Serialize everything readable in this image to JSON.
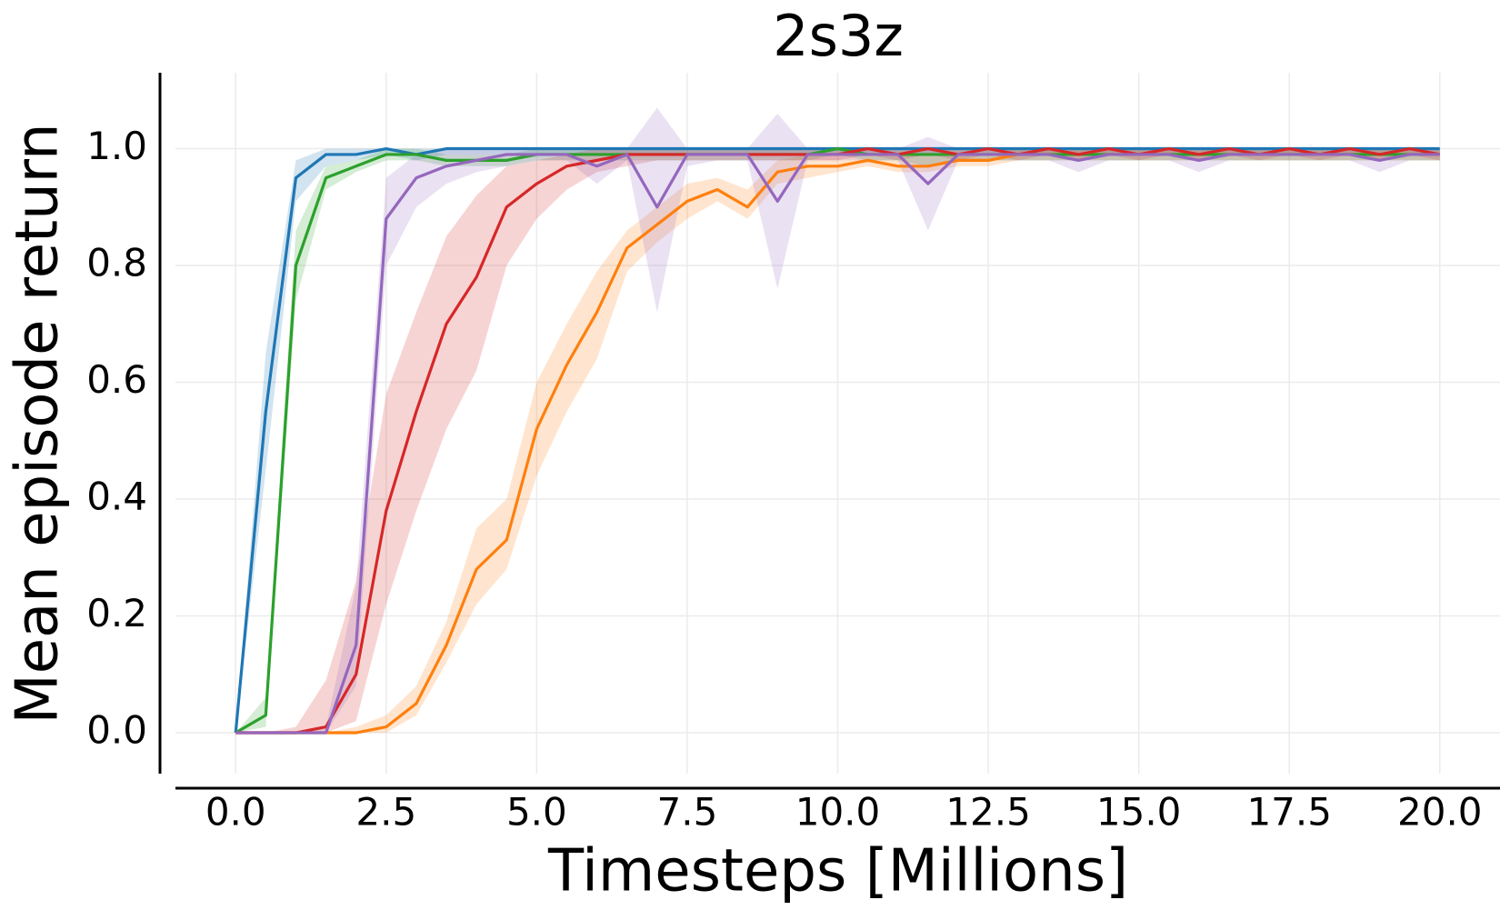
{
  "chart_data": {
    "type": "line",
    "title": "2s3z",
    "xlabel": "Timesteps [Millions]",
    "ylabel": "Mean episode return",
    "x": [
      0,
      0.5,
      1,
      1.5,
      2,
      2.5,
      3,
      3.5,
      4,
      4.5,
      5,
      5.5,
      6,
      6.5,
      7,
      7.5,
      8,
      8.5,
      9,
      9.5,
      10,
      10.5,
      11,
      11.5,
      12,
      12.5,
      13,
      13.5,
      14,
      14.5,
      15,
      15.5,
      16,
      16.5,
      17,
      17.5,
      18,
      18.5,
      19,
      19.5,
      20
    ],
    "xlim": [
      -1,
      21
    ],
    "xticks": [
      {
        "value": 0,
        "label": "0.0"
      },
      2.5,
      {
        "value": 5,
        "label": "5.0"
      },
      7.5,
      {
        "value": 10,
        "label": "10.0"
      },
      12.5,
      {
        "value": 15,
        "label": "15.0"
      },
      17.5,
      {
        "value": 20,
        "label": "20.0"
      }
    ],
    "ylim": [
      -0.07,
      1.13
    ],
    "yticks": [
      {
        "value": 0,
        "label": "0.0"
      },
      0.2,
      0.4,
      0.6,
      0.8,
      {
        "value": 1,
        "label": "1.0"
      }
    ],
    "grid": true,
    "series": [
      {
        "color": "#1f77b4",
        "values": [
          0,
          0.55,
          0.95,
          0.99,
          0.99,
          1,
          0.99,
          1,
          1,
          1,
          1,
          1,
          1,
          1,
          1,
          1,
          1,
          1,
          1,
          1,
          1,
          1,
          1,
          1,
          1,
          1,
          1,
          1,
          1,
          1,
          1,
          1,
          1,
          1,
          1,
          1,
          1,
          1,
          1,
          1,
          1
        ],
        "lower": [
          0,
          0.45,
          0.91,
          0.97,
          0.98,
          0.99,
          0.98,
          0.99,
          0.99,
          0.99,
          0.99,
          0.99,
          0.99,
          0.99,
          0.99,
          0.99,
          0.99,
          0.99,
          0.99,
          0.99,
          0.99,
          0.99,
          0.99,
          0.99,
          0.99,
          0.99,
          0.99,
          0.99,
          0.99,
          0.99,
          0.99,
          0.99,
          0.99,
          0.99,
          0.99,
          0.99,
          0.99,
          0.99,
          0.99,
          0.99,
          0.99
        ],
        "upper": [
          0,
          0.65,
          0.98,
          1,
          1,
          1,
          1,
          1,
          1,
          1,
          1,
          1,
          1,
          1,
          1,
          1,
          1,
          1,
          1,
          1,
          1,
          1,
          1,
          1,
          1,
          1,
          1,
          1,
          1,
          1,
          1,
          1,
          1,
          1,
          1,
          1,
          1,
          1,
          1,
          1,
          1
        ]
      },
      {
        "color": "#ff7f0e",
        "values": [
          0,
          0,
          0,
          0,
          0,
          0.01,
          0.05,
          0.15,
          0.28,
          0.33,
          0.52,
          0.63,
          0.72,
          0.83,
          0.87,
          0.91,
          0.93,
          0.9,
          0.96,
          0.97,
          0.97,
          0.98,
          0.97,
          0.97,
          0.98,
          0.98,
          0.99,
          0.99,
          0.99,
          0.99,
          0.99,
          0.99,
          0.99,
          0.99,
          0.99,
          0.99,
          0.99,
          0.99,
          0.99,
          0.99,
          0.99
        ],
        "lower": [
          0,
          0,
          0,
          0,
          0,
          0,
          0.03,
          0.12,
          0.22,
          0.28,
          0.44,
          0.55,
          0.64,
          0.79,
          0.84,
          0.88,
          0.91,
          0.88,
          0.94,
          0.95,
          0.96,
          0.97,
          0.96,
          0.96,
          0.97,
          0.97,
          0.98,
          0.98,
          0.98,
          0.98,
          0.98,
          0.98,
          0.98,
          0.98,
          0.98,
          0.98,
          0.98,
          0.98,
          0.98,
          0.98,
          0.98
        ],
        "upper": [
          0,
          0,
          0,
          0,
          0.01,
          0.03,
          0.08,
          0.19,
          0.35,
          0.4,
          0.6,
          0.7,
          0.79,
          0.86,
          0.9,
          0.94,
          0.95,
          0.93,
          0.98,
          0.99,
          0.99,
          0.99,
          0.99,
          0.99,
          0.99,
          0.99,
          1,
          1,
          1,
          1,
          1,
          1,
          1,
          1,
          1,
          1,
          1,
          1,
          1,
          1,
          1
        ]
      },
      {
        "color": "#2ca02c",
        "values": [
          0,
          0.03,
          0.8,
          0.95,
          0.97,
          0.99,
          0.99,
          0.98,
          0.98,
          0.98,
          0.99,
          0.99,
          0.99,
          0.99,
          0.99,
          0.99,
          0.99,
          0.99,
          0.99,
          0.99,
          1,
          0.99,
          0.99,
          0.99,
          0.99,
          0.99,
          0.99,
          0.99,
          0.99,
          0.99,
          0.99,
          0.99,
          0.99,
          0.99,
          0.99,
          0.99,
          0.99,
          0.99,
          0.99,
          0.99,
          0.99
        ],
        "lower": [
          0,
          0.01,
          0.74,
          0.93,
          0.96,
          0.98,
          0.98,
          0.97,
          0.97,
          0.97,
          0.98,
          0.98,
          0.98,
          0.98,
          0.98,
          0.98,
          0.98,
          0.98,
          0.98,
          0.98,
          0.99,
          0.98,
          0.98,
          0.97,
          0.98,
          0.98,
          0.98,
          0.98,
          0.98,
          0.98,
          0.98,
          0.98,
          0.98,
          0.98,
          0.98,
          0.98,
          0.98,
          0.98,
          0.98,
          0.98,
          0.98
        ],
        "upper": [
          0,
          0.06,
          0.86,
          0.97,
          0.98,
          1,
          1,
          0.99,
          0.99,
          0.99,
          1,
          1,
          1,
          1,
          1,
          1,
          1,
          1,
          1,
          1,
          1,
          1,
          1,
          1,
          1,
          1,
          1,
          1,
          1,
          1,
          1,
          1,
          1,
          1,
          1,
          1,
          1,
          1,
          1,
          1,
          1
        ]
      },
      {
        "color": "#d62728",
        "values": [
          0,
          0,
          0,
          0.01,
          0.1,
          0.38,
          0.55,
          0.7,
          0.78,
          0.9,
          0.94,
          0.97,
          0.98,
          0.99,
          0.99,
          0.99,
          0.99,
          0.99,
          0.99,
          0.99,
          0.99,
          1,
          0.99,
          1,
          0.99,
          1,
          0.99,
          1,
          0.99,
          1,
          0.99,
          1,
          0.99,
          1,
          0.99,
          1,
          0.99,
          1,
          0.99,
          1,
          0.99
        ],
        "lower": [
          0,
          0,
          0,
          0,
          0.02,
          0.22,
          0.38,
          0.52,
          0.62,
          0.8,
          0.88,
          0.93,
          0.96,
          0.97,
          0.98,
          0.98,
          0.98,
          0.98,
          0.98,
          0.98,
          0.98,
          0.99,
          0.98,
          0.99,
          0.98,
          0.99,
          0.98,
          0.99,
          0.98,
          0.99,
          0.98,
          0.99,
          0.98,
          0.99,
          0.98,
          0.99,
          0.98,
          0.99,
          0.98,
          0.99,
          0.98
        ],
        "upper": [
          0,
          0,
          0.01,
          0.09,
          0.26,
          0.58,
          0.72,
          0.85,
          0.92,
          0.97,
          0.98,
          0.99,
          1,
          1,
          1,
          1,
          1,
          1,
          1,
          1,
          1,
          1,
          1,
          1,
          1,
          1,
          1,
          1,
          1,
          1,
          1,
          1,
          1,
          1,
          1,
          1,
          1,
          1,
          1,
          1,
          1
        ]
      },
      {
        "color": "#9467bd",
        "values": [
          0,
          0,
          0,
          0,
          0.15,
          0.88,
          0.95,
          0.97,
          0.98,
          0.99,
          0.99,
          0.99,
          0.97,
          0.99,
          0.9,
          0.99,
          0.99,
          0.99,
          0.91,
          0.99,
          0.99,
          0.99,
          0.99,
          0.94,
          0.99,
          0.99,
          0.99,
          0.99,
          0.98,
          0.99,
          0.99,
          0.99,
          0.98,
          0.99,
          0.99,
          0.99,
          0.99,
          0.99,
          0.98,
          0.99,
          0.99
        ],
        "lower": [
          0,
          0,
          0,
          0,
          0.08,
          0.8,
          0.9,
          0.94,
          0.96,
          0.97,
          0.98,
          0.98,
          0.94,
          0.98,
          0.72,
          0.97,
          0.98,
          0.98,
          0.76,
          0.98,
          0.98,
          0.98,
          0.98,
          0.86,
          0.98,
          0.98,
          0.98,
          0.98,
          0.96,
          0.98,
          0.98,
          0.98,
          0.96,
          0.98,
          0.98,
          0.98,
          0.98,
          0.98,
          0.96,
          0.98,
          0.98
        ],
        "upper": [
          0,
          0,
          0,
          0.01,
          0.25,
          0.95,
          0.99,
          1,
          1,
          1,
          1,
          1,
          1,
          1,
          1.07,
          1,
          1,
          1,
          1.06,
          1,
          1,
          1,
          1,
          1.02,
          1,
          1,
          1,
          1,
          1,
          1,
          1,
          1,
          1,
          1,
          1,
          1,
          1,
          1,
          1,
          1,
          1
        ]
      }
    ]
  }
}
